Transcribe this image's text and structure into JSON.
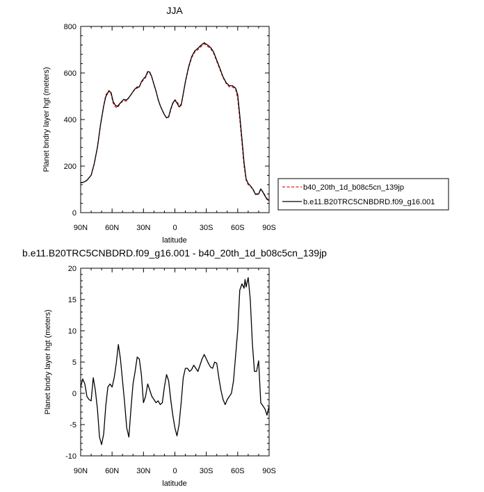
{
  "chart_data": [
    {
      "type": "line",
      "title": "JJA",
      "xlabel": "latitude",
      "ylabel": "Planet bndry layer hgt (meters)",
      "xlim": [
        90,
        -90
      ],
      "ylim": [
        0,
        800
      ],
      "x_ticks": [
        90,
        60,
        30,
        0,
        -30,
        -60,
        -90
      ],
      "x_tick_labels": [
        "90N",
        "60N",
        "30N",
        "0",
        "30S",
        "60S",
        "90S"
      ],
      "y_ticks": [
        0,
        200,
        400,
        600,
        800
      ],
      "y_tick_labels": [
        "0",
        "200",
        "400",
        "600",
        "800"
      ],
      "legend_position": "right",
      "series": [
        {
          "name": "b40_20th_1d_b08c5cn_139jp",
          "color": "#e8141a",
          "dash": "dashed",
          "x": [
            90,
            87,
            84,
            80,
            77,
            74,
            71,
            68,
            66,
            64,
            63,
            61,
            59,
            57,
            55,
            52,
            49,
            46,
            43,
            40,
            38,
            36,
            34,
            32,
            30,
            28,
            26,
            24,
            22,
            20,
            18,
            16,
            14,
            12,
            10,
            8,
            6,
            4,
            2,
            0,
            -2,
            -4,
            -6,
            -8,
            -10,
            -13,
            -16,
            -19,
            -22,
            -25,
            -28,
            -31,
            -34,
            -37,
            -40,
            -43,
            -46,
            -49,
            -52,
            -55,
            -58,
            -60,
            -62,
            -64,
            -66,
            -68,
            -70,
            -72,
            -75,
            -77,
            -80,
            -82,
            -84,
            -86,
            -88,
            -90
          ],
          "y": [
            128,
            130,
            140,
            160,
            210,
            280,
            380,
            460,
            505,
            520,
            525,
            510,
            470,
            455,
            450,
            470,
            480,
            480,
            500,
            520,
            530,
            535,
            540,
            560,
            570,
            580,
            602,
            600,
            580,
            550,
            520,
            485,
            460,
            440,
            420,
            408,
            410,
            440,
            468,
            485,
            478,
            460,
            465,
            510,
            560,
            620,
            665,
            690,
            700,
            713,
            725,
            715,
            705,
            685,
            650,
            615,
            580,
            555,
            540,
            540,
            530,
            490,
            400,
            300,
            200,
            140,
            120,
            115,
            95,
            80,
            82,
            100,
            90,
            75,
            60,
            55
          ]
        },
        {
          "name": "b.e11.B20TRC5CNBDRD.f09_g16.001",
          "color": "#000000",
          "dash": "solid",
          "x": [
            90,
            87,
            84,
            80,
            77,
            74,
            71,
            68,
            66,
            64,
            63,
            61,
            59,
            57,
            55,
            52,
            49,
            46,
            43,
            40,
            38,
            36,
            34,
            32,
            30,
            28,
            26,
            24,
            22,
            20,
            18,
            16,
            14,
            12,
            10,
            8,
            6,
            4,
            2,
            0,
            -2,
            -4,
            -6,
            -8,
            -10,
            -13,
            -16,
            -19,
            -22,
            -25,
            -28,
            -31,
            -34,
            -37,
            -40,
            -43,
            -46,
            -49,
            -52,
            -55,
            -58,
            -60,
            -62,
            -64,
            -66,
            -68,
            -70,
            -72,
            -75,
            -77,
            -80,
            -82,
            -84,
            -86,
            -88,
            -90
          ],
          "y": [
            129,
            131,
            139,
            161,
            212,
            281,
            378,
            458,
            498,
            515,
            522,
            516,
            477,
            462,
            456,
            472,
            486,
            484,
            500,
            520,
            532,
            540,
            540,
            562,
            575,
            584,
            606,
            604,
            582,
            551,
            522,
            487,
            460,
            440,
            421,
            407,
            412,
            445,
            471,
            483,
            471,
            454,
            461,
            510,
            563,
            625,
            670,
            695,
            706,
            719,
            730,
            721,
            710,
            690,
            655,
            620,
            583,
            558,
            545,
            545,
            535,
            507,
            418,
            318,
            217,
            145,
            125,
            116,
            98,
            78,
            80,
            102,
            88,
            72,
            57,
            52
          ]
        }
      ]
    },
    {
      "type": "line",
      "title": "b.e11.B20TRC5CNBDRD.f09_g16.001 - b40_20th_1d_b08c5cn_139jp",
      "xlabel": "latitude",
      "ylabel": "Planet bndry layer hgt (meters)",
      "xlim": [
        90,
        -90
      ],
      "ylim": [
        -10,
        20
      ],
      "x_ticks": [
        90,
        60,
        30,
        0,
        -30,
        -60,
        -90
      ],
      "x_tick_labels": [
        "90N",
        "60N",
        "30N",
        "0",
        "30S",
        "60S",
        "90S"
      ],
      "y_ticks": [
        -10,
        -5,
        0,
        5,
        10,
        15,
        20
      ],
      "y_tick_labels": [
        "-10",
        "-5",
        "0",
        "5",
        "10",
        "15",
        "20"
      ],
      "series": [
        {
          "color": "#000000",
          "dash": "solid",
          "x": [
            90,
            88,
            86,
            84,
            82,
            80,
            78,
            76,
            74,
            72,
            70,
            68,
            66,
            64,
            62,
            60,
            58,
            56,
            54,
            52,
            50,
            48,
            46,
            44,
            42,
            40,
            38,
            36,
            34,
            32,
            30,
            28,
            26,
            24,
            22,
            20,
            18,
            16,
            14,
            12,
            10,
            8,
            6,
            4,
            2,
            0,
            -2,
            -4,
            -6,
            -8,
            -10,
            -12,
            -14,
            -16,
            -18,
            -20,
            -22,
            -24,
            -26,
            -28,
            -30,
            -32,
            -34,
            -36,
            -38,
            -40,
            -42,
            -44,
            -46,
            -48,
            -50,
            -52,
            -54,
            -56,
            -58,
            -60,
            -62,
            -63,
            -64,
            -65,
            -66,
            -67,
            -68,
            -70,
            -72,
            -74,
            -76,
            -78,
            -80,
            -82,
            -84,
            -86,
            -88,
            -90
          ],
          "y": [
            1.0,
            2.3,
            1.5,
            -0.5,
            -1.0,
            -1.2,
            2.5,
            0.5,
            -2.5,
            -7.0,
            -8.2,
            -6.5,
            -2.0,
            1.0,
            1.5,
            1.0,
            2.5,
            4.8,
            7.8,
            5.5,
            2.0,
            -1.5,
            -5.5,
            -7.0,
            -2.5,
            1.5,
            3.5,
            5.8,
            5.5,
            3.0,
            -1.5,
            -0.5,
            1.5,
            0.5,
            -0.5,
            -1.0,
            -1.5,
            -1.2,
            -1.8,
            -1.5,
            1.0,
            3.0,
            2.0,
            -1.0,
            -3.5,
            -5.5,
            -6.8,
            -5.0,
            -1.5,
            2.5,
            4.0,
            4.0,
            3.5,
            3.8,
            4.5,
            4.0,
            3.5,
            4.5,
            5.5,
            6.2,
            5.5,
            4.8,
            4.2,
            4.0,
            5.0,
            4.8,
            2.5,
            0.5,
            -1.0,
            -1.8,
            -1.0,
            -0.5,
            0.0,
            2.0,
            6.0,
            10.0,
            16.5,
            17.0,
            17.5,
            17.2,
            16.8,
            18.2,
            17.0,
            18.5,
            15.0,
            8.0,
            3.5,
            3.5,
            5.2,
            -1.5,
            -2.0,
            -2.5,
            -3.5,
            -2.0
          ]
        }
      ]
    }
  ]
}
